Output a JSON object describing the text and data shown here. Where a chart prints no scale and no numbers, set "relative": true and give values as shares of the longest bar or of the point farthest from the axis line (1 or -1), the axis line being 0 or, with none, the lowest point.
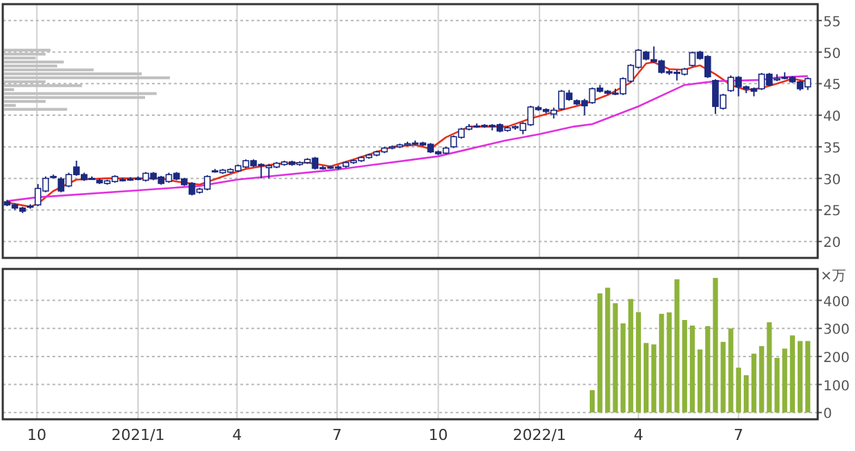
{
  "chart_data": [
    {
      "type": "candlestick",
      "xlim": [
        "2020-08-31",
        "2022-09-11"
      ],
      "ylim": [
        17.4,
        57.6
      ],
      "yticks": [
        20,
        25,
        30,
        35,
        40,
        45,
        50,
        55
      ],
      "xticks": [
        {
          "value": "2020-10-01",
          "label": null
        },
        {
          "value": "2021-01-01",
          "label": null
        },
        {
          "value": "2021-04-01",
          "label": null
        },
        {
          "value": "2021-07-01",
          "label": null
        },
        {
          "value": "2021-10-01",
          "label": null
        },
        {
          "value": "2022-01-01",
          "label": null
        },
        {
          "value": "2022-04-01",
          "label": null
        },
        {
          "value": "2022-07-01",
          "label": null
        }
      ],
      "tick_labels": "y",
      "grid": true,
      "color": "#1c2a80",
      "x": [
        "2020-09-04",
        "2020-09-11",
        "2020-09-18",
        "2020-09-25",
        "2020-10-02",
        "2020-10-09",
        "2020-10-16",
        "2020-10-23",
        "2020-10-30",
        "2020-11-06",
        "2020-11-13",
        "2020-11-20",
        "2020-11-27",
        "2020-12-04",
        "2020-12-11",
        "2020-12-18",
        "2020-12-25",
        "2021-01-01",
        "2021-01-08",
        "2021-01-15",
        "2021-01-22",
        "2021-01-29",
        "2021-02-05",
        "2021-02-12",
        "2021-02-19",
        "2021-02-26",
        "2021-03-05",
        "2021-03-12",
        "2021-03-19",
        "2021-03-26",
        "2021-04-02",
        "2021-04-09",
        "2021-04-16",
        "2021-04-23",
        "2021-04-30",
        "2021-05-07",
        "2021-05-14",
        "2021-05-21",
        "2021-05-28",
        "2021-06-04",
        "2021-06-11",
        "2021-06-18",
        "2021-06-25",
        "2021-07-02",
        "2021-07-09",
        "2021-07-16",
        "2021-07-23",
        "2021-07-30",
        "2021-08-06",
        "2021-08-13",
        "2021-08-20",
        "2021-08-27",
        "2021-09-03",
        "2021-09-10",
        "2021-09-17",
        "2021-09-24",
        "2021-10-01",
        "2021-10-08",
        "2021-10-15",
        "2021-10-22",
        "2021-10-29",
        "2021-11-05",
        "2021-11-12",
        "2021-11-19",
        "2021-11-26",
        "2021-12-03",
        "2021-12-10",
        "2021-12-17",
        "2021-12-24",
        "2021-12-31",
        "2022-01-07",
        "2022-01-14",
        "2022-01-21",
        "2022-01-28",
        "2022-02-04",
        "2022-02-11",
        "2022-02-18",
        "2022-02-25",
        "2022-03-04",
        "2022-03-11",
        "2022-03-18",
        "2022-03-25",
        "2022-04-01",
        "2022-04-08",
        "2022-04-15",
        "2022-04-22",
        "2022-04-29",
        "2022-05-06",
        "2022-05-13",
        "2022-05-20",
        "2022-05-27",
        "2022-06-03",
        "2022-06-10",
        "2022-06-17",
        "2022-06-24",
        "2022-07-01",
        "2022-07-08",
        "2022-07-15",
        "2022-07-22",
        "2022-07-29",
        "2022-08-05",
        "2022-08-12",
        "2022-08-19",
        "2022-08-26",
        "2022-09-02"
      ],
      "ohlc": [
        [
          26.3,
          26.6,
          25.6,
          25.8
        ],
        [
          25.8,
          26.0,
          25.0,
          25.3
        ],
        [
          25.3,
          25.5,
          24.5,
          24.8
        ],
        [
          25.5,
          25.9,
          25.2,
          25.6
        ],
        [
          25.8,
          29.1,
          25.6,
          28.4
        ],
        [
          28.0,
          30.3,
          27.8,
          30.0
        ],
        [
          30.2,
          30.6,
          30.0,
          30.3
        ],
        [
          29.9,
          30.2,
          27.8,
          28.0
        ],
        [
          28.8,
          30.9,
          28.6,
          30.6
        ],
        [
          31.8,
          32.8,
          30.4,
          30.6
        ],
        [
          30.6,
          30.9,
          29.6,
          29.8
        ],
        [
          30.0,
          30.3,
          29.8,
          30.0
        ],
        [
          29.7,
          30.0,
          29.1,
          29.3
        ],
        [
          29.2,
          29.8,
          29.0,
          29.6
        ],
        [
          29.5,
          30.5,
          29.3,
          30.3
        ],
        [
          29.8,
          30.1,
          29.5,
          29.8
        ],
        [
          29.9,
          30.2,
          29.6,
          29.9
        ],
        [
          30.0,
          30.3,
          29.7,
          30.0
        ],
        [
          29.7,
          31.0,
          29.5,
          30.8
        ],
        [
          30.8,
          31.0,
          29.7,
          29.9
        ],
        [
          30.2,
          30.4,
          29.0,
          29.2
        ],
        [
          29.5,
          30.9,
          29.3,
          30.6
        ],
        [
          30.8,
          31.0,
          29.7,
          29.9
        ],
        [
          29.9,
          30.1,
          28.8,
          29.0
        ],
        [
          29.2,
          29.4,
          27.3,
          27.5
        ],
        [
          27.8,
          28.5,
          27.6,
          28.3
        ],
        [
          28.3,
          30.5,
          28.1,
          30.3
        ],
        [
          31.2,
          31.5,
          30.9,
          31.2
        ],
        [
          30.9,
          31.5,
          30.7,
          31.3
        ],
        [
          31.0,
          31.6,
          30.8,
          31.4
        ],
        [
          31.2,
          32.2,
          31.0,
          32.0
        ],
        [
          31.8,
          33.0,
          31.6,
          32.8
        ],
        [
          32.8,
          33.0,
          31.8,
          32.0
        ],
        [
          32.2,
          32.4,
          30.0,
          32.0
        ],
        [
          31.7,
          32.3,
          30.0,
          32.0
        ],
        [
          31.8,
          32.6,
          31.6,
          32.4
        ],
        [
          32.2,
          32.8,
          32.0,
          32.6
        ],
        [
          32.6,
          32.8,
          32.0,
          32.2
        ],
        [
          32.2,
          32.7,
          32.0,
          32.5
        ],
        [
          32.5,
          33.2,
          32.3,
          33.0
        ],
        [
          33.2,
          33.4,
          31.4,
          31.6
        ],
        [
          31.6,
          32.0,
          31.4,
          31.7
        ],
        [
          31.7,
          32.0,
          31.5,
          31.8
        ],
        [
          31.8,
          32.1,
          31.4,
          31.8
        ],
        [
          31.9,
          32.7,
          31.7,
          32.5
        ],
        [
          32.5,
          33.0,
          32.3,
          32.8
        ],
        [
          32.8,
          33.5,
          32.6,
          33.3
        ],
        [
          33.3,
          33.9,
          33.1,
          33.7
        ],
        [
          33.7,
          34.4,
          33.5,
          34.2
        ],
        [
          34.2,
          35.0,
          34.0,
          34.8
        ],
        [
          34.8,
          35.2,
          34.6,
          35.0
        ],
        [
          35.0,
          35.5,
          34.8,
          35.3
        ],
        [
          35.3,
          35.8,
          35.1,
          35.5
        ],
        [
          35.5,
          36.0,
          35.3,
          35.6
        ],
        [
          35.6,
          35.8,
          35.1,
          35.3
        ],
        [
          35.4,
          35.6,
          34.0,
          34.2
        ],
        [
          34.2,
          34.4,
          33.7,
          33.9
        ],
        [
          34.0,
          35.0,
          33.8,
          34.8
        ],
        [
          35.0,
          36.8,
          34.8,
          36.6
        ],
        [
          36.5,
          38.0,
          36.3,
          37.8
        ],
        [
          37.8,
          38.6,
          37.6,
          38.2
        ],
        [
          38.2,
          38.7,
          38.0,
          38.3
        ],
        [
          38.3,
          38.6,
          38.0,
          38.4
        ],
        [
          38.4,
          38.6,
          37.6,
          38.3
        ],
        [
          38.5,
          38.7,
          37.3,
          37.5
        ],
        [
          37.6,
          38.3,
          37.4,
          38.0
        ],
        [
          38.0,
          38.4,
          37.7,
          38.2
        ],
        [
          37.6,
          38.9,
          37.0,
          38.7
        ],
        [
          38.5,
          41.5,
          38.3,
          41.3
        ],
        [
          41.2,
          41.5,
          40.7,
          40.9
        ],
        [
          40.9,
          41.1,
          40.3,
          40.6
        ],
        [
          40.2,
          41.2,
          39.5,
          40.8
        ],
        [
          41.0,
          44.0,
          40.8,
          43.8
        ],
        [
          43.5,
          44.0,
          42.3,
          42.5
        ],
        [
          42.3,
          42.5,
          41.6,
          41.8
        ],
        [
          42.3,
          42.6,
          40.0,
          41.5
        ],
        [
          42.0,
          44.4,
          41.8,
          44.2
        ],
        [
          44.3,
          44.8,
          43.6,
          43.8
        ],
        [
          43.8,
          44.0,
          43.3,
          43.5
        ],
        [
          43.5,
          44.2,
          43.2,
          43.4
        ],
        [
          43.4,
          46.0,
          43.2,
          45.8
        ],
        [
          45.4,
          48.1,
          45.2,
          47.9
        ],
        [
          47.6,
          50.5,
          47.4,
          50.3
        ],
        [
          50.0,
          50.2,
          48.7,
          48.9
        ],
        [
          48.8,
          50.9,
          48.3,
          48.5
        ],
        [
          48.6,
          48.8,
          46.6,
          46.8
        ],
        [
          46.9,
          47.2,
          46.4,
          46.7
        ],
        [
          46.8,
          47.2,
          45.5,
          46.8
        ],
        [
          46.5,
          47.5,
          46.3,
          47.3
        ],
        [
          47.9,
          50.1,
          47.7,
          49.9
        ],
        [
          50.0,
          50.2,
          48.8,
          49.0
        ],
        [
          49.3,
          49.5,
          45.9,
          46.1
        ],
        [
          45.5,
          45.7,
          40.2,
          41.4
        ],
        [
          41.1,
          43.4,
          40.9,
          43.2
        ],
        [
          43.9,
          46.3,
          43.7,
          46.0
        ],
        [
          46.0,
          46.2,
          43.0,
          44.5
        ],
        [
          44.5,
          44.7,
          43.5,
          44.2
        ],
        [
          44.2,
          44.4,
          43.0,
          43.8
        ],
        [
          44.2,
          46.7,
          44.0,
          46.5
        ],
        [
          46.5,
          46.7,
          44.6,
          44.8
        ],
        [
          45.6,
          46.5,
          45.4,
          45.8
        ],
        [
          46.0,
          46.8,
          45.7,
          46.0
        ],
        [
          46.0,
          46.2,
          45.1,
          45.3
        ],
        [
          45.3,
          45.5,
          43.9,
          44.2
        ],
        [
          44.5,
          46.0,
          44.0,
          45.8
        ]
      ],
      "series": [
        {
          "type": "line",
          "color": "#e8311a",
          "x": [
            "2020-09-04",
            "2020-09-25",
            "2020-10-02",
            "2020-10-16",
            "2020-11-06",
            "2020-12-04",
            "2021-01-22",
            "2021-02-05",
            "2021-02-26",
            "2021-03-19",
            "2021-04-09",
            "2021-05-07",
            "2021-06-04",
            "2021-06-25",
            "2021-07-16",
            "2021-08-20",
            "2021-09-10",
            "2021-09-24",
            "2021-10-08",
            "2021-10-29",
            "2021-12-03",
            "2021-12-24",
            "2022-01-14",
            "2022-02-11",
            "2022-03-04",
            "2022-03-25",
            "2022-04-08",
            "2022-04-15",
            "2022-04-29",
            "2022-05-13",
            "2022-05-20",
            "2022-05-27",
            "2022-06-10",
            "2022-06-24",
            "2022-07-08",
            "2022-07-22",
            "2022-08-05",
            "2022-08-12",
            "2022-08-19",
            "2022-09-02"
          ],
          "values": [
            26.2,
            25.5,
            26.0,
            28.0,
            29.8,
            30.0,
            30.0,
            29.5,
            29.0,
            30.3,
            31.5,
            32.3,
            32.5,
            31.9,
            33.0,
            35.0,
            35.3,
            34.7,
            36.5,
            38.2,
            38.2,
            39.5,
            40.5,
            41.8,
            43.2,
            45.2,
            48.2,
            48.4,
            47.3,
            47.2,
            47.6,
            47.9,
            46.5,
            44.8,
            44.0,
            44.3,
            45.0,
            45.4,
            45.8,
            45.3
          ]
        },
        {
          "type": "line",
          "color": "#e030e0",
          "x": [
            "2020-09-04",
            "2020-10-01",
            "2021-01-01",
            "2021-02-26",
            "2021-04-01",
            "2021-07-01",
            "2021-10-01",
            "2021-12-01",
            "2022-01-01",
            "2022-02-01",
            "2022-02-18",
            "2022-04-01",
            "2022-05-13",
            "2022-06-10",
            "2022-07-22",
            "2022-08-05",
            "2022-09-02"
          ],
          "values": [
            26.4,
            27.0,
            28.1,
            28.8,
            29.8,
            31.4,
            33.5,
            36.0,
            37.0,
            38.2,
            38.6,
            41.4,
            44.8,
            45.4,
            45.6,
            46.0,
            46.2
          ]
        }
      ]
    },
    {
      "type": "bar",
      "orientation": "horizontal",
      "relative": true,
      "color": "#c0c0c0",
      "categories": [
        null,
        null,
        null,
        null,
        null,
        null,
        null,
        null,
        null,
        null,
        null,
        null,
        null,
        null,
        null,
        null
      ],
      "values": [
        0.28,
        0.25,
        0.19,
        0.36,
        0.32,
        0.54,
        0.83,
        1.0,
        0.25,
        0.47,
        0.06,
        0.92,
        0.85,
        0.25,
        0.07,
        0.38
      ]
    },
    {
      "type": "bar",
      "ylabel": "×万",
      "xlim": [
        "2020-08-31",
        "2022-09-11"
      ],
      "ylim": [
        -24,
        512
      ],
      "yticks": [
        0,
        100,
        200,
        300,
        400
      ],
      "grid": true,
      "color": "#8db33a",
      "xticks": [
        {
          "value": "2020-10-01",
          "label": "10"
        },
        {
          "value": "2021-01-01",
          "label": "2021/1"
        },
        {
          "value": "2021-04-01",
          "label": "4"
        },
        {
          "value": "2021-07-01",
          "label": "7"
        },
        {
          "value": "2021-10-01",
          "label": "10"
        },
        {
          "value": "2022-01-01",
          "label": "2022/1"
        },
        {
          "value": "2022-04-01",
          "label": "4"
        },
        {
          "value": "2022-07-01",
          "label": "7"
        }
      ],
      "x": [
        "2022-02-18",
        "2022-02-25",
        "2022-03-04",
        "2022-03-11",
        "2022-03-18",
        "2022-03-25",
        "2022-04-01",
        "2022-04-08",
        "2022-04-15",
        "2022-04-22",
        "2022-04-29",
        "2022-05-06",
        "2022-05-13",
        "2022-05-20",
        "2022-05-27",
        "2022-06-03",
        "2022-06-10",
        "2022-06-17",
        "2022-06-24",
        "2022-07-01",
        "2022-07-08",
        "2022-07-15",
        "2022-07-22",
        "2022-07-29",
        "2022-08-05",
        "2022-08-12",
        "2022-08-19",
        "2022-08-26",
        "2022-09-02"
      ],
      "values": [
        80,
        425,
        445,
        390,
        318,
        405,
        358,
        248,
        243,
        352,
        357,
        475,
        330,
        310,
        225,
        308,
        480,
        252,
        300,
        160,
        133,
        210,
        237,
        322,
        195,
        228,
        275,
        255,
        255
      ]
    }
  ]
}
